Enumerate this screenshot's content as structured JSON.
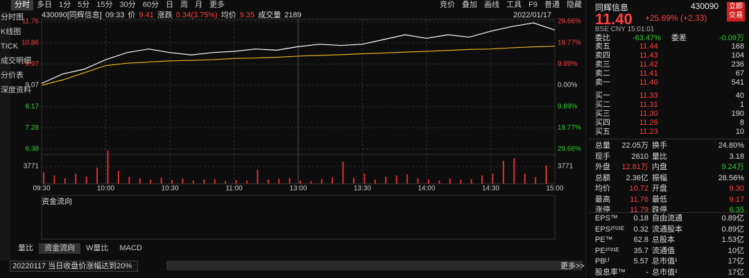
{
  "toolbar_left": [
    "分时",
    "多日",
    "1分",
    "5分",
    "15分",
    "30分",
    "60分",
    "日",
    "周",
    "月",
    "更多"
  ],
  "toolbar_right": [
    "竞价",
    "叠加",
    "画线",
    "工具",
    "F9",
    "普通",
    "隐藏"
  ],
  "side_tabs": [
    "分时图",
    "K线图",
    "TICK",
    "成交明细",
    "分价表",
    "深度资料"
  ],
  "info": [
    "430090[同辉信息]",
    "09:33",
    "价",
    "9.41",
    "涨跌",
    "0.34(3.75%)",
    "均价",
    "9.35",
    "成交量",
    "2189"
  ],
  "date": "2022/01/17",
  "chart_data": {
    "type": "line",
    "x": [
      0,
      10,
      20,
      30,
      40,
      50,
      60,
      70,
      80,
      90,
      100,
      110,
      120,
      130,
      140,
      150,
      160,
      170,
      180,
      190,
      200,
      210,
      220,
      230,
      240
    ],
    "series": [
      {
        "name": "价",
        "color": "#ffffff",
        "values": [
          9.15,
          9.55,
          9.75,
          10.15,
          10.45,
          10.6,
          10.45,
          10.35,
          10.45,
          10.5,
          10.6,
          10.55,
          10.7,
          10.8,
          10.75,
          10.8,
          11.0,
          11.2,
          11.05,
          11.2,
          11.1,
          11.35,
          11.55,
          11.7,
          11.4
        ]
      },
      {
        "name": "均价",
        "color": "#e0b020",
        "values": [
          9.07,
          9.3,
          9.6,
          9.9,
          10.0,
          10.05,
          10.1,
          10.12,
          10.15,
          10.2,
          10.22,
          10.25,
          10.3,
          10.33,
          10.36,
          10.4,
          10.43,
          10.47,
          10.5,
          10.54,
          10.58,
          10.6,
          10.65,
          10.69,
          10.72
        ]
      }
    ],
    "xlim": [
      0,
      240
    ],
    "xticks": [
      {
        "value": 0,
        "label": "09:30"
      },
      {
        "value": 30,
        "label": "10:00"
      },
      {
        "value": 60,
        "label": "10:30"
      },
      {
        "value": 90,
        "label": "11:00"
      },
      {
        "value": 120,
        "label": "13:00"
      },
      {
        "value": 150,
        "label": "13:30"
      },
      {
        "value": 180,
        "label": "14:00"
      },
      {
        "value": 210,
        "label": "14:30"
      },
      {
        "value": 240,
        "label": "15:00"
      }
    ],
    "ylim": [
      6.38,
      11.76
    ],
    "yticks": [
      11.76,
      10.86,
      9.97,
      9.07,
      8.17,
      7.28,
      6.38
    ],
    "y2lim": [
      -29.66,
      29.66
    ],
    "y2ticks": [
      {
        "value": 29.66,
        "label": "29.66%"
      },
      {
        "value": 19.77,
        "label": "19.77%"
      },
      {
        "value": 9.89,
        "label": "9.89%"
      },
      {
        "value": 0,
        "label": "0.00%"
      },
      {
        "value": -9.89,
        "label": "9.89%"
      },
      {
        "value": -19.77,
        "label": "19.77%"
      },
      {
        "value": -29.66,
        "label": "29.66%"
      }
    ],
    "grid": true,
    "volume": {
      "color": "#e03030",
      "x": [
        0,
        5,
        10,
        15,
        20,
        25,
        30,
        35,
        40,
        45,
        50,
        55,
        60,
        65,
        70,
        75,
        80,
        85,
        90,
        95,
        100,
        105,
        110,
        115,
        120,
        125,
        130,
        135,
        140,
        145,
        150,
        155,
        160,
        165,
        170,
        175,
        180,
        185,
        190,
        195,
        200,
        205,
        210,
        215,
        220,
        225,
        230,
        235
      ],
      "values": [
        2500,
        1800,
        1200,
        2200,
        1500,
        3500,
        7200,
        2800,
        1500,
        1200,
        900,
        1300,
        800,
        1100,
        700,
        900,
        1000,
        600,
        800,
        700,
        3000,
        900,
        1100,
        1200,
        700,
        600,
        1000,
        1400,
        4800,
        1300,
        2200,
        900,
        1500,
        1800,
        2000,
        1200,
        900,
        700,
        1100,
        900,
        1000,
        1800,
        2200,
        5000,
        5500,
        2200,
        1400,
        4000
      ],
      "ylim": [
        0,
        7542
      ],
      "yticks": [
        3771
      ]
    }
  },
  "sub_panel": {
    "title": "资金流向"
  },
  "bottom_tabs": [
    "量比",
    "资金流向",
    "W量比",
    "MACD"
  ],
  "filter": "20220117 当日收盘价涨幅达到20%",
  "more": "更多>>",
  "quote": {
    "name": "同辉信息",
    "code": "430090",
    "button": "立即交易",
    "price": "11.40",
    "change": "+25.69% (+2.33)",
    "market": "BSE CNY 15:01:01",
    "ratio": [
      "委比",
      "-63.47%",
      "委差",
      "-0.09万"
    ],
    "book": [
      [
        "卖五",
        "11.44",
        "168"
      ],
      [
        "卖四",
        "11.43",
        "104"
      ],
      [
        "卖三",
        "11.42",
        "236"
      ],
      [
        "卖二",
        "11.41",
        "67"
      ],
      [
        "卖一",
        "11.40",
        "541"
      ],
      [
        "买一",
        "11.33",
        "40"
      ],
      [
        "买二",
        "11.31",
        "1"
      ],
      [
        "买三",
        "11.30",
        "190"
      ],
      [
        "买四",
        "11.26",
        "8"
      ],
      [
        "买五",
        "11.23",
        "10"
      ]
    ],
    "stats": [
      [
        "总量",
        "22.05万",
        "换手",
        "24.80%"
      ],
      [
        "现手",
        "2610",
        "量比",
        "3.18"
      ],
      [
        "外盘",
        "12.81万",
        "内盘",
        "9.24万"
      ],
      [
        "总额",
        "2.36亿",
        "振幅",
        "28.56%"
      ],
      [
        "均价",
        "10.72",
        "开盘",
        "9.30"
      ],
      [
        "最高",
        "11.76",
        "最低",
        "9.17"
      ],
      [
        "涨停",
        "11.79",
        "跌停",
        "6.35"
      ]
    ],
    "fundamentals": [
      [
        "EPS™",
        "0.18",
        "自由流通",
        "0.89亿"
      ],
      [
        "EPS²⁰²¹ᴱ",
        "0.32",
        "流通股本",
        "0.89亿"
      ],
      [
        "PE™",
        "62.8",
        "总股本",
        "1.53亿"
      ],
      [
        "PE²⁰²¹ᴱ",
        "35.7",
        "流通值",
        "10亿"
      ],
      [
        "PBᴸᶠ",
        "5.57",
        "总市值¹",
        "17亿"
      ],
      [
        "股息率™",
        "-",
        "总市值²",
        "17亿"
      ]
    ]
  }
}
